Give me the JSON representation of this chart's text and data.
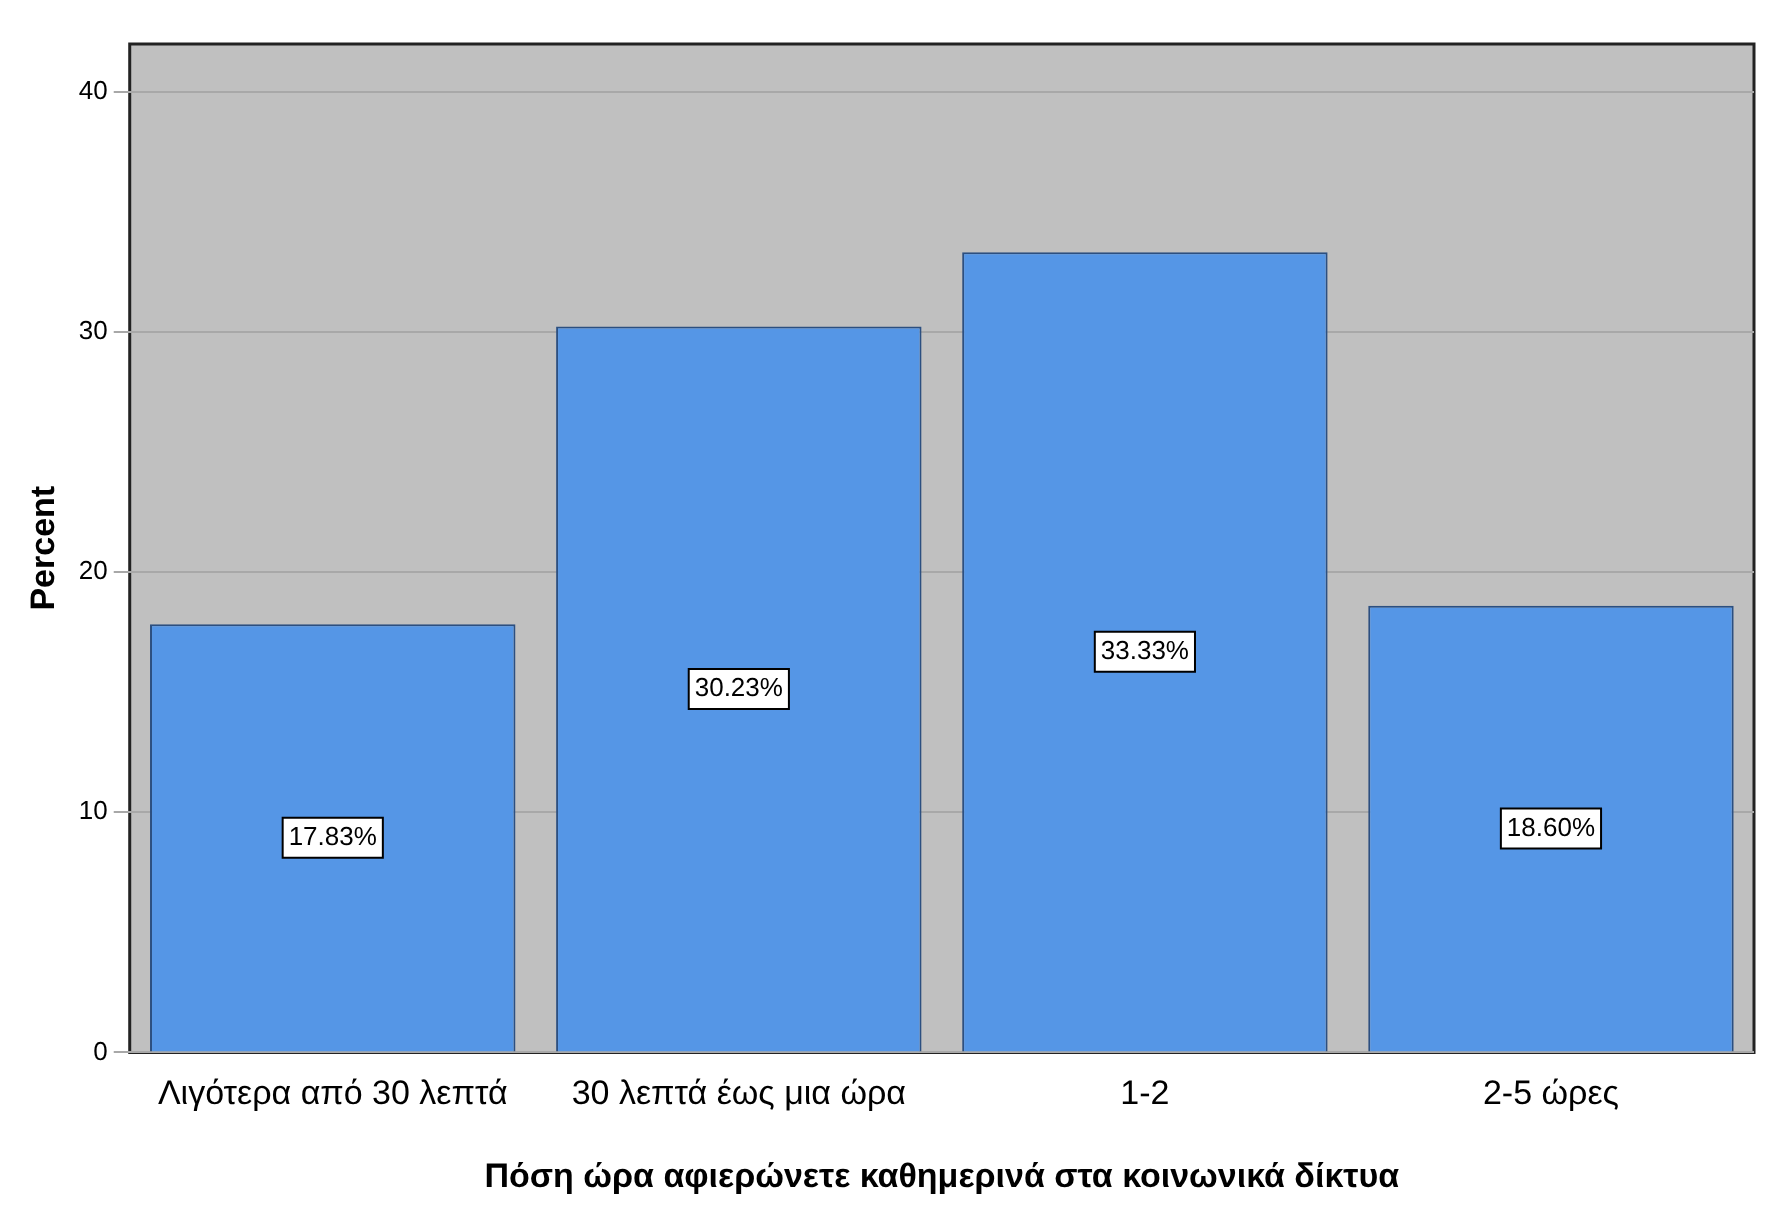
{
  "chart_data": {
    "type": "bar",
    "xlabel": "Πόση ώρα αφιερώνετε καθημερινά στα κοινωνικά δίκτυα",
    "ylabel": "Percent",
    "categories": [
      "Λιγότερα από 30 λεπτά",
      "30 λεπτά έως μια ώρα",
      "1-2",
      "2-5 ώρες"
    ],
    "values": [
      17.83,
      30.23,
      33.33,
      18.6
    ],
    "value_labels": [
      "17.83%",
      "30.23%",
      "33.33%",
      "18.60%"
    ],
    "color": "#5596e6",
    "ylim": [
      0,
      42
    ],
    "yticks": [
      0,
      10,
      20,
      30,
      40
    ],
    "grid": "y",
    "legend": false
  }
}
